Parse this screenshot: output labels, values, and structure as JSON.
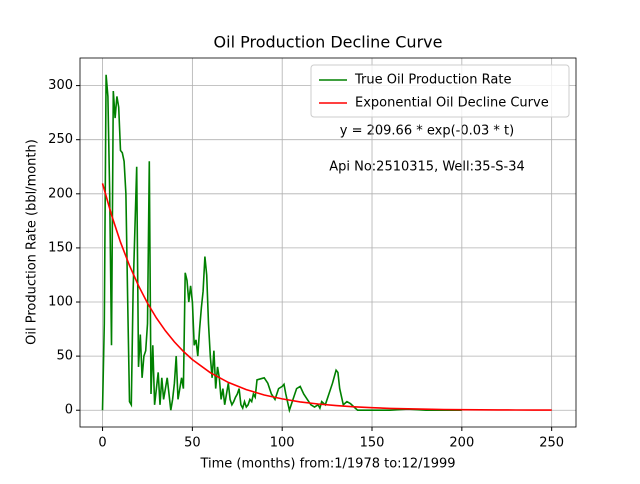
{
  "chart_data": {
    "type": "line",
    "title": "Oil Production Decline Curve",
    "xlabel": "Time (months) from:1/1978 to:12/1999",
    "ylabel": "Oil Production Rate (bbl/month)",
    "annotations": [
      "y = 209.66 * exp(-0.03 * t)",
      "Api No:2510315, Well:35-S-34"
    ],
    "xlim": [
      -12.55,
      263.55
    ],
    "xticks": [
      0,
      50,
      100,
      150,
      200,
      250
    ],
    "ylim": [
      -15.5,
      325.5
    ],
    "yticks": [
      0,
      50,
      100,
      150,
      200,
      250,
      300
    ],
    "grid": true,
    "legend": "upper right",
    "series": [
      {
        "name": "True Oil Production Rate",
        "color": "#008000",
        "x": [
          0,
          1,
          2,
          3,
          4,
          5,
          6,
          7,
          8,
          9,
          10,
          11,
          12,
          13,
          14,
          15,
          16,
          17,
          19,
          20,
          21,
          22,
          23,
          24,
          25,
          26,
          27,
          28,
          29,
          30,
          31,
          32,
          33,
          34,
          35,
          36,
          37,
          38,
          39,
          40,
          41,
          42,
          43,
          44,
          45,
          46,
          47,
          48,
          49,
          50,
          51,
          52,
          53,
          54,
          55,
          56,
          57,
          58,
          59,
          60,
          61,
          62,
          63,
          64,
          65,
          66,
          67,
          68,
          69,
          70,
          71,
          72,
          73,
          74,
          75,
          76,
          77,
          78,
          79,
          80,
          81,
          82,
          83,
          84,
          85,
          86,
          88,
          90,
          92,
          94,
          96,
          98,
          100,
          101,
          102,
          104,
          106,
          108,
          110,
          112,
          114,
          116,
          118,
          120,
          121,
          122,
          124,
          126,
          128,
          130,
          131,
          132,
          134,
          136,
          138,
          140,
          142,
          150,
          160,
          170,
          180,
          190,
          200
        ],
        "values": [
          0,
          80,
          310,
          290,
          200,
          60,
          295,
          270,
          290,
          280,
          240,
          238,
          230,
          200,
          100,
          8,
          5,
          110,
          225,
          40,
          70,
          30,
          50,
          55,
          80,
          230,
          15,
          60,
          5,
          20,
          35,
          5,
          30,
          10,
          20,
          30,
          15,
          0,
          10,
          25,
          50,
          10,
          20,
          30,
          20,
          127,
          120,
          100,
          115,
          100,
          60,
          65,
          50,
          75,
          95,
          110,
          142,
          125,
          80,
          50,
          30,
          55,
          20,
          40,
          30,
          10,
          20,
          5,
          15,
          25,
          10,
          5,
          8,
          12,
          15,
          20,
          5,
          2,
          8,
          3,
          5,
          10,
          8,
          15,
          12,
          28,
          29,
          30,
          25,
          15,
          10,
          20,
          22,
          24,
          15,
          0,
          10,
          20,
          22,
          15,
          10,
          5,
          3,
          5,
          2,
          8,
          5,
          15,
          25,
          37,
          35,
          20,
          5,
          8,
          6,
          3,
          0,
          0,
          0,
          1,
          0,
          0,
          0
        ]
      },
      {
        "name": "Exponential Oil Decline Curve",
        "color": "#ff0000",
        "x": [
          0,
          5,
          10,
          15,
          20,
          25,
          30,
          35,
          40,
          45,
          50,
          60,
          70,
          80,
          90,
          100,
          110,
          120,
          130,
          140,
          150,
          160,
          170,
          180,
          190,
          200,
          210,
          220,
          230,
          240,
          250
        ],
        "values": [
          209.66,
          180.46,
          155.32,
          133.69,
          115.06,
          99.03,
          85.24,
          73.37,
          63.15,
          54.35,
          46.78,
          34.66,
          25.67,
          19.02,
          14.09,
          10.44,
          7.73,
          5.73,
          4.24,
          3.14,
          2.33,
          1.73,
          1.28,
          0.95,
          0.7,
          0.52,
          0.38,
          0.29,
          0.21,
          0.16,
          0.12
        ]
      }
    ]
  }
}
